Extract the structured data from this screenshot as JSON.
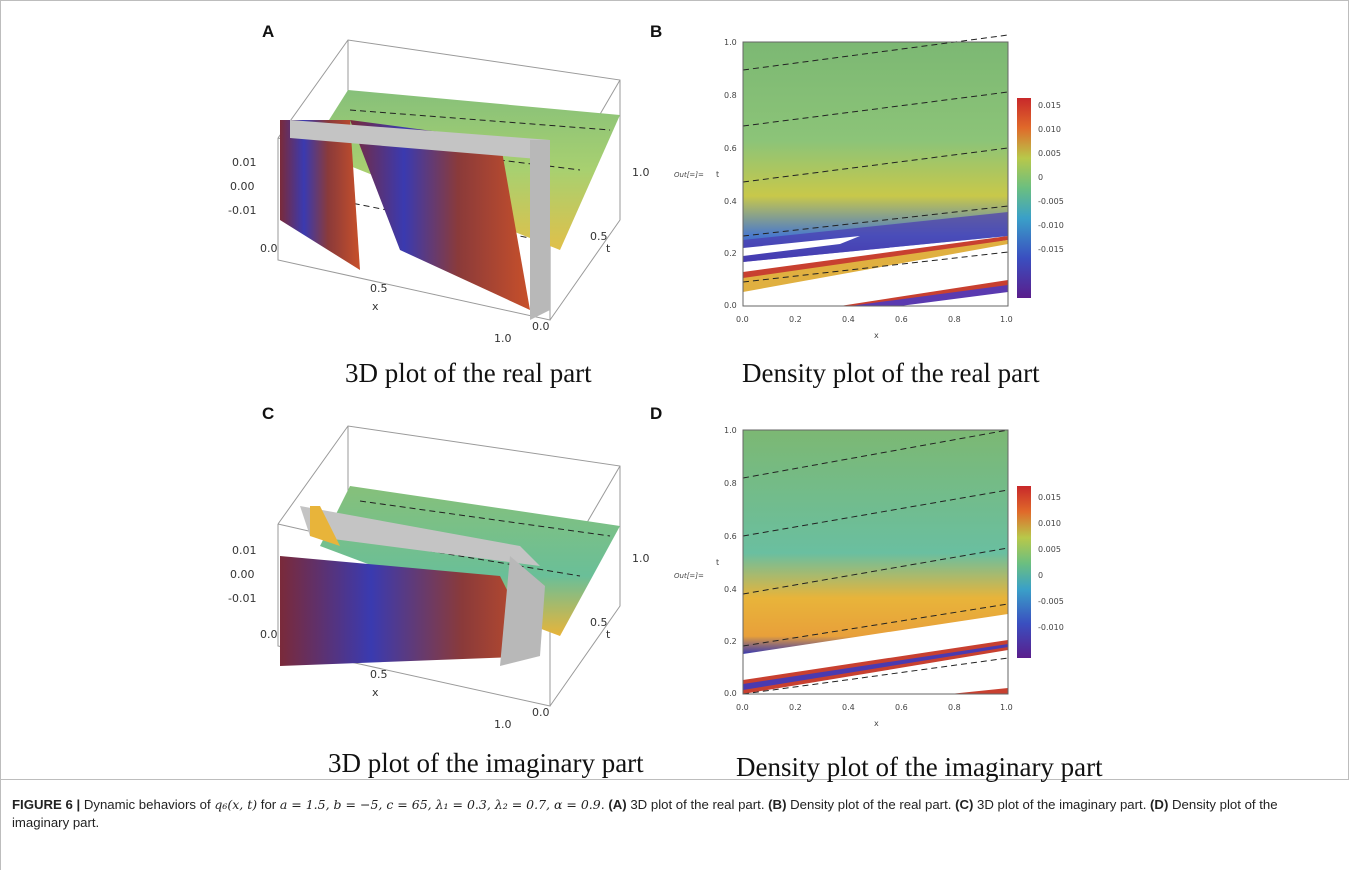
{
  "panels": [
    {
      "letter": "A",
      "subcaption": "3D plot of the real part",
      "axes": {
        "z_ticks": [
          "0.01",
          "0.00",
          "-0.01"
        ],
        "x_ticks": [
          "0.0",
          "0.5",
          "1.0"
        ],
        "x_label": "x",
        "t_ticks": [
          "0.0",
          "0.5",
          "1.0"
        ],
        "t_label": "t"
      }
    },
    {
      "letter": "B",
      "subcaption": "Density plot of the real part",
      "axes": {
        "x_ticks": [
          "0.0",
          "0.2",
          "0.4",
          "0.6",
          "0.8",
          "1.0"
        ],
        "x_label": "x",
        "y_ticks": [
          "0.0",
          "0.2",
          "0.4",
          "0.6",
          "0.8",
          "1.0"
        ],
        "y_label": "t",
        "side_label": "Out[=]=",
        "legend_ticks": [
          "0.015",
          "0.010",
          "0.005",
          "0",
          "-0.005",
          "-0.010",
          "-0.015"
        ]
      }
    },
    {
      "letter": "C",
      "subcaption": "3D plot of the imaginary part",
      "axes": {
        "z_ticks": [
          "0.01",
          "0.00",
          "-0.01"
        ],
        "x_ticks": [
          "0.0",
          "0.5",
          "1.0"
        ],
        "x_label": "x",
        "t_ticks": [
          "0.0",
          "0.5",
          "1.0"
        ],
        "t_label": "t"
      }
    },
    {
      "letter": "D",
      "subcaption": "Density plot of the imaginary part",
      "axes": {
        "x_ticks": [
          "0.0",
          "0.2",
          "0.4",
          "0.6",
          "0.8",
          "1.0"
        ],
        "x_label": "x",
        "y_ticks": [
          "0.0",
          "0.2",
          "0.4",
          "0.6",
          "0.8",
          "1.0"
        ],
        "y_label": "t",
        "side_label": "Out[=]=",
        "legend_ticks": [
          "0.015",
          "0.010",
          "0.005",
          "0",
          "-0.005",
          "-0.010"
        ]
      }
    }
  ],
  "caption": {
    "label": "FIGURE 6 |",
    "text_1": " Dynamic behaviors of ",
    "func": "q₆(x, t)",
    "text_2": " for ",
    "params": "a = 1.5, b = −5, c = 65, λ₁ = 0.3, λ₂ = 0.7, α = 0.9.",
    "ref_a": "(A)",
    "desc_a": " 3D plot of the real part. ",
    "ref_b": "(B)",
    "desc_b": " Density plot of the real part. ",
    "ref_c": "(C)",
    "desc_c": " 3D plot of the imaginary part. ",
    "ref_d": "(D)",
    "desc_d": " Density plot of the imaginary part."
  },
  "colors": {
    "rainbow": [
      "#5a1e8c",
      "#3a4fc0",
      "#3aa0c8",
      "#6bbf80",
      "#b8c84a",
      "#e8b43a",
      "#e06a2a",
      "#c8282a"
    ],
    "plateau": "#86c07a",
    "frame": "#bdbdbd"
  }
}
